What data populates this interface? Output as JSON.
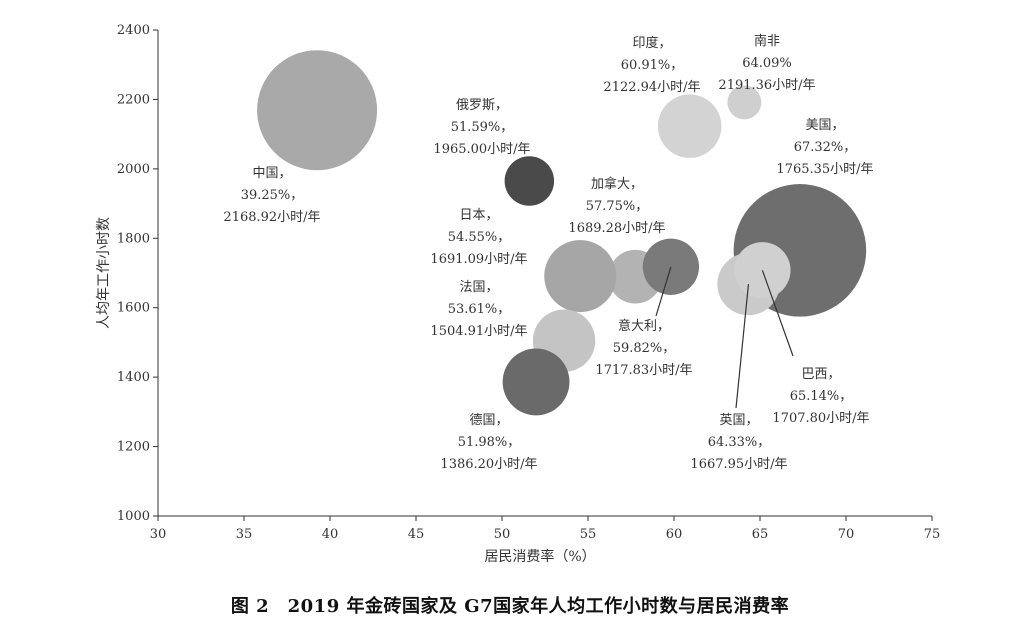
{
  "caption": "图 2　2019 年金砖国家及 G7国家年人均工作小时数与居民消费率",
  "chart_data": {
    "type": "scatter",
    "title": "",
    "xlabel": "居民消费率（%）",
    "ylabel": "人均年工作小时数",
    "xlim": [
      30,
      75
    ],
    "ylim": [
      1000,
      2400
    ],
    "xticks": [
      "30",
      "35",
      "40",
      "45",
      "50",
      "55",
      "60",
      "65",
      "70",
      "75"
    ],
    "yticks": [
      "1000",
      "1200",
      "1400",
      "1600",
      "1800",
      "2000",
      "2200",
      "2400"
    ],
    "grid": false,
    "bubble_size_note": "",
    "points": [
      {
        "name": "中国",
        "x": 39.25,
        "y": 2168.92,
        "size": 1.0,
        "color": "#a9a9a9",
        "label": [
          "中国，",
          "39.25%，",
          "2168.92小时/年"
        ]
      },
      {
        "name": "俄罗斯",
        "x": 51.59,
        "y": 1965.0,
        "size": 0.17,
        "color": "#4a4a4a",
        "label": [
          "俄罗斯，",
          "51.59%，",
          "1965.00小时/年"
        ]
      },
      {
        "name": "印度",
        "x": 60.91,
        "y": 2122.94,
        "size": 0.28,
        "color": "#d3d3d3",
        "label": [
          "印度，",
          "60.91%，",
          "2122.94小时/年"
        ]
      },
      {
        "name": "南非",
        "x": 64.09,
        "y": 2191.36,
        "size": 0.08,
        "color": "#cfcfcf",
        "label": [
          "南非",
          "64.09%",
          "2191.36小时/年"
        ]
      },
      {
        "name": "美国",
        "x": 67.32,
        "y": 1765.35,
        "size": 1.22,
        "color": "#6e6e6e",
        "label": [
          "美国，",
          "67.32%，",
          "1765.35小时/年"
        ]
      },
      {
        "name": "加拿大",
        "x": 57.75,
        "y": 1689.28,
        "size": 0.2,
        "color": "#b3b3b3",
        "label": [
          "加拿大，",
          "57.75%，",
          "1689.28小时/年"
        ]
      },
      {
        "name": "日本",
        "x": 54.55,
        "y": 1691.09,
        "size": 0.36,
        "color": "#a6a6a6",
        "label": [
          "日本，",
          "54.55%，",
          "1691.09小时/年"
        ]
      },
      {
        "name": "法国",
        "x": 53.61,
        "y": 1504.91,
        "size": 0.27,
        "color": "#c4c4c4",
        "label": [
          "法国，",
          "53.61%，",
          "1504.91小时/年"
        ]
      },
      {
        "name": "德国",
        "x": 51.98,
        "y": 1386.2,
        "size": 0.31,
        "color": "#6a6a6a",
        "label": [
          "德国，",
          "51.98%，",
          "1386.20小时/年"
        ]
      },
      {
        "name": "意大利",
        "x": 59.82,
        "y": 1717.83,
        "size": 0.22,
        "color": "#7a7a7a",
        "label": [
          "意大利，",
          "59.82%，",
          "1717.83小时/年"
        ]
      },
      {
        "name": "英国",
        "x": 64.33,
        "y": 1667.95,
        "size": 0.27,
        "color": "#cacaca",
        "label": [
          "英国，",
          "64.33%，",
          "1667.95小时/年"
        ]
      },
      {
        "name": "巴西",
        "x": 65.14,
        "y": 1707.8,
        "size": 0.22,
        "color": "#d0d0d0",
        "label": [
          "巴西，",
          "65.14%，",
          "1707.80小时/年"
        ]
      }
    ]
  }
}
